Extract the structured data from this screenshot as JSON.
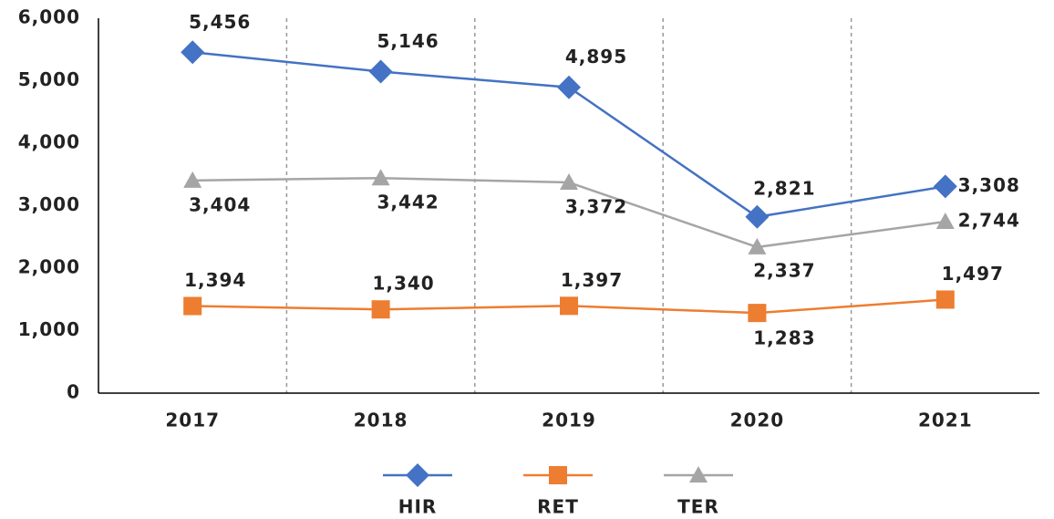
{
  "chart_data": {
    "type": "line",
    "categories": [
      "2017",
      "2018",
      "2019",
      "2020",
      "2021"
    ],
    "series": [
      {
        "name": "HIR",
        "color": "#4472c4",
        "marker": "diamond",
        "values": [
          5456,
          5146,
          4895,
          2821,
          3308
        ],
        "value_labels": [
          "5,456",
          "5,146",
          "4,895",
          "2,821",
          "3,308"
        ]
      },
      {
        "name": "RET",
        "color": "#ed7d31",
        "marker": "square",
        "values": [
          1394,
          1340,
          1397,
          1283,
          1497
        ],
        "value_labels": [
          "1,394",
          "1,340",
          "1,397",
          "1,283",
          "1,497"
        ]
      },
      {
        "name": "TER",
        "color": "#a5a5a5",
        "marker": "triangle",
        "values": [
          3404,
          3442,
          3372,
          2337,
          2744
        ],
        "value_labels": [
          "3,404",
          "3,442",
          "3,372",
          "2,337",
          "2,744"
        ]
      }
    ],
    "ylim": [
      0,
      6000
    ],
    "yticks": [
      0,
      {
        "value": 1000,
        "label": "1,000"
      },
      {
        "value": 2000,
        "label": "2,000"
      },
      {
        "value": 3000,
        "label": "3,000"
      },
      {
        "value": 4000,
        "label": "4,000"
      },
      {
        "value": 5000,
        "label": "5,000"
      },
      {
        "value": 6000,
        "label": "6,000"
      }
    ],
    "legend": "bottom"
  }
}
